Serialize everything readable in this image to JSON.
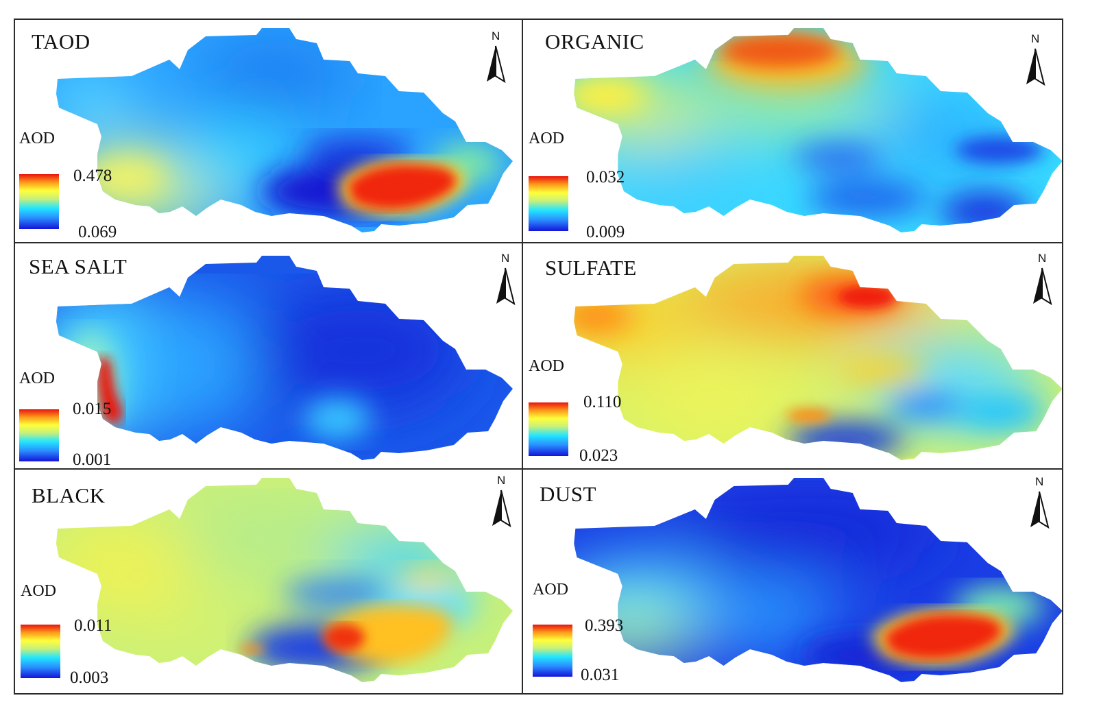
{
  "figure": {
    "legend_title": "AOD",
    "north_label": "N",
    "colormap": [
      "#1010d8",
      "#2a8cff",
      "#22e6ff",
      "#c8f07a",
      "#ffff3a",
      "#ff9a1a",
      "#e8140e"
    ]
  },
  "panels": [
    {
      "id": "taod",
      "title": "TAOD",
      "legend_max": "0.478",
      "legend_min": "0.069"
    },
    {
      "id": "organic",
      "title": "ORGANIC",
      "legend_max": "0.032",
      "legend_min": "0.009"
    },
    {
      "id": "sea-salt",
      "title": "SEA SALT",
      "legend_max": "0.015",
      "legend_min": "0.001"
    },
    {
      "id": "sulfate",
      "title": "SULFATE",
      "legend_max": "0.110",
      "legend_min": "0.023"
    },
    {
      "id": "black",
      "title": "BLACK",
      "legend_max": "0.011",
      "legend_min": "0.003"
    },
    {
      "id": "dust",
      "title": "DUST",
      "legend_max": "0.393",
      "legend_min": "0.031"
    }
  ]
}
